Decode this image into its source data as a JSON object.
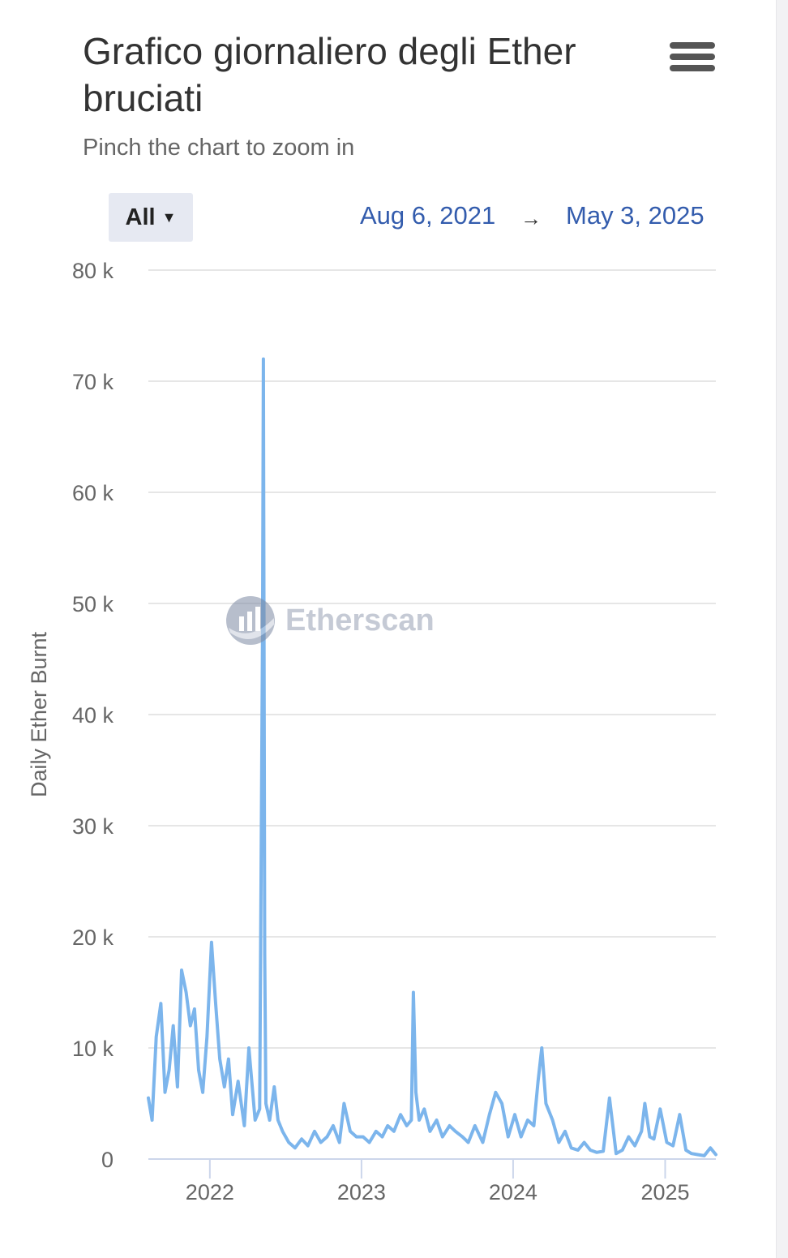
{
  "header": {
    "title": "Grafico giornaliero degli Ether bruciati",
    "subtitle": "Pinch the chart to zoom in"
  },
  "controls": {
    "range_label": "All",
    "date_from": "Aug 6, 2021",
    "date_arrow": "→",
    "date_to": "May 3, 2025"
  },
  "watermark": {
    "text": "Etherscan"
  },
  "colors": {
    "series": "#7cb5ec",
    "grid": "#e6e6e6",
    "axis": "#ccd6eb",
    "accent": "#335cad"
  },
  "chart_data": {
    "type": "line",
    "title": "Grafico giornaliero degli Ether bruciati",
    "subtitle": "Pinch the chart to zoom in",
    "xlabel": "",
    "ylabel": "Daily Ether Burnt",
    "xlim": [
      "2021-08-06",
      "2025-05-03"
    ],
    "ylim": [
      0,
      80000
    ],
    "grid": true,
    "legend": "none",
    "x_ticks": [
      "2022",
      "2023",
      "2024",
      "2025"
    ],
    "y_ticks": [
      "0",
      "10 k",
      "20 k",
      "30 k",
      "40 k",
      "50 k",
      "60 k",
      "70 k",
      "80 k"
    ],
    "series": [
      {
        "name": "",
        "x": [
          "2021-08-06",
          "2021-08-15",
          "2021-08-25",
          "2021-09-05",
          "2021-09-15",
          "2021-09-25",
          "2021-10-05",
          "2021-10-15",
          "2021-10-25",
          "2021-11-05",
          "2021-11-15",
          "2021-11-25",
          "2021-12-05",
          "2021-12-15",
          "2021-12-25",
          "2022-01-05",
          "2022-01-15",
          "2022-01-25",
          "2022-02-05",
          "2022-02-15",
          "2022-02-25",
          "2022-03-10",
          "2022-03-25",
          "2022-04-05",
          "2022-04-20",
          "2022-05-01",
          "2022-05-08",
          "2022-05-10",
          "2022-05-13",
          "2022-05-16",
          "2022-05-25",
          "2022-06-05",
          "2022-06-14",
          "2022-06-25",
          "2022-07-10",
          "2022-07-25",
          "2022-08-10",
          "2022-08-25",
          "2022-09-10",
          "2022-09-25",
          "2022-10-10",
          "2022-10-25",
          "2022-11-09",
          "2022-11-20",
          "2022-12-05",
          "2022-12-20",
          "2023-01-05",
          "2023-01-20",
          "2023-02-05",
          "2023-02-20",
          "2023-03-05",
          "2023-03-20",
          "2023-04-05",
          "2023-04-20",
          "2023-05-01",
          "2023-05-06",
          "2023-05-12",
          "2023-05-20",
          "2023-06-01",
          "2023-06-15",
          "2023-07-01",
          "2023-07-15",
          "2023-08-01",
          "2023-08-15",
          "2023-09-01",
          "2023-09-15",
          "2023-10-01",
          "2023-10-20",
          "2023-11-05",
          "2023-11-20",
          "2023-12-05",
          "2023-12-20",
          "2024-01-05",
          "2024-01-20",
          "2024-02-05",
          "2024-02-20",
          "2024-03-01",
          "2024-03-10",
          "2024-03-20",
          "2024-04-05",
          "2024-04-20",
          "2024-05-05",
          "2024-05-20",
          "2024-06-05",
          "2024-06-20",
          "2024-07-05",
          "2024-07-20",
          "2024-08-05",
          "2024-08-20",
          "2024-09-05",
          "2024-09-20",
          "2024-10-05",
          "2024-10-20",
          "2024-11-05",
          "2024-11-13",
          "2024-11-25",
          "2024-12-05",
          "2024-12-20",
          "2025-01-05",
          "2025-01-20",
          "2025-02-05",
          "2025-02-20",
          "2025-03-05",
          "2025-03-20",
          "2025-04-05",
          "2025-04-20",
          "2025-05-03"
        ],
        "values": [
          5500,
          3500,
          11000,
          14000,
          6000,
          8000,
          12000,
          6500,
          17000,
          15000,
          12000,
          13500,
          8000,
          6000,
          11000,
          19500,
          14000,
          9000,
          6500,
          9000,
          4000,
          7000,
          3000,
          10000,
          3500,
          4500,
          48000,
          72000,
          18500,
          5000,
          3500,
          6500,
          3500,
          2500,
          1500,
          1000,
          1800,
          1200,
          2500,
          1500,
          2000,
          3000,
          1500,
          5000,
          2500,
          2000,
          2000,
          1500,
          2500,
          2000,
          3000,
          2500,
          4000,
          3000,
          3500,
          15000,
          6000,
          3500,
          4500,
          2500,
          3500,
          2000,
          3000,
          2500,
          2000,
          1500,
          3000,
          1500,
          4000,
          6000,
          5000,
          2000,
          4000,
          2000,
          3500,
          3000,
          7000,
          10000,
          5000,
          3500,
          1500,
          2500,
          1000,
          800,
          1500,
          800,
          600,
          700,
          5500,
          500,
          800,
          2000,
          1200,
          2500,
          5000,
          2000,
          1800,
          4500,
          1500,
          1200,
          4000,
          800,
          500,
          400,
          300,
          1000,
          400
        ]
      }
    ]
  }
}
